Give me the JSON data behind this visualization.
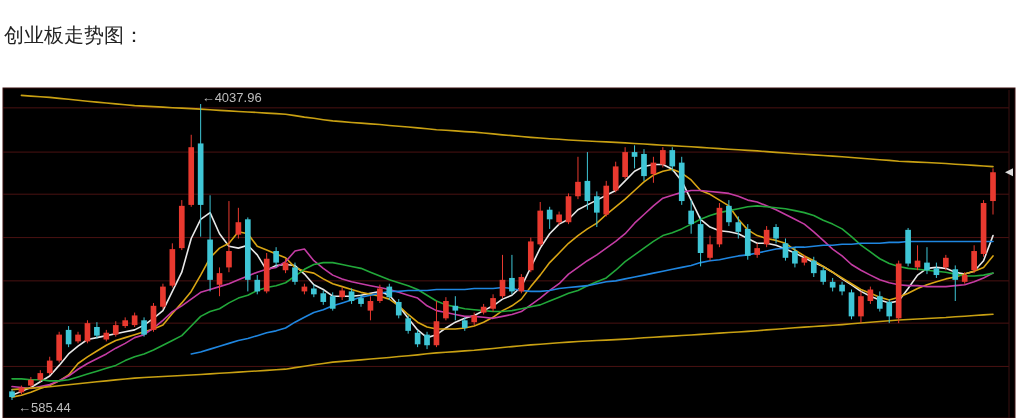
{
  "chart_data": {
    "type": "candlestick",
    "title": "创业板走势图：",
    "categories": [
      null,
      null,
      null,
      null,
      null,
      null,
      null,
      null,
      null,
      null,
      null,
      null,
      null,
      null,
      null,
      null,
      null,
      null,
      null,
      null,
      null,
      null,
      null,
      null,
      null,
      null,
      null,
      null,
      null,
      null,
      null,
      null,
      null,
      null,
      null,
      null,
      null,
      null,
      null,
      null,
      null,
      null,
      null,
      null,
      null,
      null,
      null,
      null,
      null,
      null,
      null,
      null,
      null,
      null,
      null,
      null,
      null,
      null,
      null,
      null,
      null,
      null,
      null,
      null,
      null,
      null,
      null,
      null,
      null,
      null,
      null,
      null,
      null,
      null,
      null,
      null,
      null,
      null,
      null,
      null,
      null,
      null,
      null,
      null,
      null,
      null,
      null,
      null,
      null,
      null,
      null,
      null,
      null,
      null,
      null,
      null,
      null,
      null,
      null,
      null,
      null,
      null,
      null,
      null,
      null
    ],
    "ohlc": [
      [
        686,
        709,
        585.44,
        619
      ],
      [
        675,
        754,
        653,
        731
      ],
      [
        754,
        854,
        731,
        821
      ],
      [
        821,
        933,
        798,
        899
      ],
      [
        899,
        1090,
        877,
        1045
      ],
      [
        1045,
        1381,
        1022,
        1348
      ],
      [
        1403,
        1448,
        1202,
        1235
      ],
      [
        1269,
        1381,
        1247,
        1348
      ],
      [
        1269,
        1515,
        1247,
        1482
      ],
      [
        1437,
        1493,
        1303,
        1336
      ],
      [
        1291,
        1403,
        1269,
        1370
      ],
      [
        1348,
        1504,
        1325,
        1459
      ],
      [
        1448,
        1549,
        1426,
        1515
      ],
      [
        1459,
        1605,
        1437,
        1572
      ],
      [
        1515,
        1549,
        1325,
        1348
      ],
      [
        1403,
        1717,
        1381,
        1684
      ],
      [
        1673,
        1942,
        1650,
        1908
      ],
      [
        1919,
        2413,
        1897,
        2345
      ],
      [
        2357,
        2917,
        2334,
        2850
      ],
      [
        2861,
        3679,
        2839,
        3534
      ],
      [
        3578,
        4037.96,
        2491,
        2861
      ],
      [
        2457,
        2973,
        1852,
        1987
      ],
      [
        1930,
        2132,
        1796,
        2065
      ],
      [
        2132,
        2906,
        2076,
        2323
      ],
      [
        2514,
        2827,
        2469,
        2659
      ],
      [
        2693,
        2715,
        1852,
        1987
      ],
      [
        1987,
        2043,
        1818,
        1852
      ],
      [
        1852,
        2300,
        1830,
        2233
      ],
      [
        2323,
        2368,
        2132,
        2188
      ],
      [
        2099,
        2233,
        2065,
        2188
      ],
      [
        2132,
        2188,
        1930,
        1964
      ],
      [
        1852,
        1942,
        1818,
        1908
      ],
      [
        1886,
        1930,
        1785,
        1818
      ],
      [
        1830,
        1863,
        1695,
        1729
      ],
      [
        1796,
        1841,
        1628,
        1650
      ],
      [
        1785,
        1897,
        1751,
        1863
      ],
      [
        1852,
        1886,
        1706,
        1740
      ],
      [
        1774,
        1818,
        1673,
        1706
      ],
      [
        1628,
        1796,
        1515,
        1740
      ],
      [
        1740,
        1930,
        1717,
        1886
      ],
      [
        1908,
        1942,
        1751,
        1785
      ],
      [
        1729,
        1762,
        1538,
        1572
      ],
      [
        1538,
        1572,
        1359,
        1392
      ],
      [
        1370,
        1403,
        1202,
        1235
      ],
      [
        1348,
        1381,
        1179,
        1224
      ],
      [
        1224,
        1740,
        1202,
        1504
      ],
      [
        1538,
        1785,
        1515,
        1740
      ],
      [
        1684,
        1796,
        1515,
        1628
      ],
      [
        1515,
        1549,
        1392,
        1426
      ],
      [
        1493,
        1605,
        1459,
        1572
      ],
      [
        1605,
        1706,
        1583,
        1673
      ],
      [
        1650,
        1818,
        1617,
        1774
      ],
      [
        1796,
        2278,
        1774,
        1987
      ],
      [
        2009,
        2278,
        1818,
        1852
      ],
      [
        1852,
        2054,
        1830,
        2020
      ],
      [
        2099,
        2480,
        2076,
        2435
      ],
      [
        2401,
        2895,
        2379,
        2794
      ],
      [
        2805,
        2839,
        2581,
        2693
      ],
      [
        2659,
        2783,
        2626,
        2749
      ],
      [
        2659,
        2995,
        2637,
        2962
      ],
      [
        2962,
        3422,
        2928,
        3130
      ],
      [
        3141,
        3477,
        2805,
        2906
      ],
      [
        2962,
        3018,
        2603,
        2771
      ],
      [
        2749,
        3141,
        2726,
        3085
      ],
      [
        3029,
        3365,
        3007,
        3310
      ],
      [
        3186,
        3534,
        3164,
        3477
      ],
      [
        3477,
        3556,
        3287,
        3422
      ],
      [
        3455,
        3511,
        3141,
        3197
      ],
      [
        3220,
        3422,
        3119,
        3354
      ],
      [
        3332,
        3534,
        3298,
        3500
      ],
      [
        3500,
        3534,
        3253,
        3310
      ],
      [
        3354,
        3422,
        2861,
        2906
      ],
      [
        2794,
        2917,
        2525,
        2637
      ],
      [
        2637,
        2726,
        2144,
        2300
      ],
      [
        2244,
        2502,
        2211,
        2401
      ],
      [
        2401,
        2883,
        2368,
        2827
      ],
      [
        2850,
        2917,
        2614,
        2659
      ],
      [
        2659,
        2726,
        2469,
        2547
      ],
      [
        2581,
        2637,
        2222,
        2267
      ],
      [
        2278,
        2413,
        2244,
        2357
      ],
      [
        2401,
        2614,
        2368,
        2570
      ],
      [
        2603,
        2637,
        2413,
        2469
      ],
      [
        2413,
        2469,
        2211,
        2244
      ],
      [
        2323,
        2368,
        2132,
        2177
      ],
      [
        2188,
        2278,
        2155,
        2244
      ],
      [
        2211,
        2256,
        2020,
        2065
      ],
      [
        2099,
        2132,
        1930,
        1964
      ],
      [
        1964,
        2009,
        1852,
        1897
      ],
      [
        1930,
        1964,
        1807,
        1852
      ],
      [
        1841,
        1874,
        1527,
        1561
      ],
      [
        1561,
        1852,
        1482,
        1796
      ],
      [
        1740,
        1908,
        1706,
        1874
      ],
      [
        1796,
        1852,
        1617,
        1650
      ],
      [
        1729,
        1762,
        1482,
        1561
      ],
      [
        1538,
        2211,
        1482,
        2177
      ],
      [
        2570,
        2592,
        2144,
        2177
      ],
      [
        2132,
        2390,
        2099,
        2211
      ],
      [
        2188,
        2368,
        2054,
        2099
      ],
      [
        2121,
        2188,
        2009,
        2043
      ],
      [
        2132,
        2278,
        2099,
        2244
      ],
      [
        2110,
        2155,
        1740,
        1987
      ],
      [
        1964,
        2076,
        1942,
        2043
      ],
      [
        2099,
        2390,
        2065,
        2323
      ],
      [
        2289,
        2917,
        2256,
        2883
      ],
      [
        2906,
        3287,
        2749,
        3242
      ]
    ],
    "colors": [
      "#3fc6d6",
      "#e8392f",
      "#e8392f",
      "#e8392f",
      "#e8392f",
      "#e8392f",
      "#3fc6d6",
      "#e8392f",
      "#e8392f",
      "#3fc6d6",
      "#e8392f",
      "#e8392f",
      "#e8392f",
      "#e8392f",
      "#3fc6d6",
      "#e8392f",
      "#e8392f",
      "#e8392f",
      "#e8392f",
      "#e8392f",
      "#3fc6d6",
      "#3fc6d6",
      "#e8392f",
      "#e8392f",
      "#e8392f",
      "#3fc6d6",
      "#3fc6d6",
      "#e8392f",
      "#3fc6d6",
      "#e8392f",
      "#3fc6d6",
      "#e8392f",
      "#3fc6d6",
      "#3fc6d6",
      "#3fc6d6",
      "#e8392f",
      "#3fc6d6",
      "#3fc6d6",
      "#e8392f",
      "#e8392f",
      "#3fc6d6",
      "#3fc6d6",
      "#3fc6d6",
      "#3fc6d6",
      "#3fc6d6",
      "#e8392f",
      "#e8392f",
      "#3fc6d6",
      "#3fc6d6",
      "#e8392f",
      "#e8392f",
      "#e8392f",
      "#e8392f",
      "#3fc6d6",
      "#e8392f",
      "#e8392f",
      "#e8392f",
      "#3fc6d6",
      "#e8392f",
      "#e8392f",
      "#e8392f",
      "#3fc6d6",
      "#3fc6d6",
      "#e8392f",
      "#e8392f",
      "#e8392f",
      "#3fc6d6",
      "#3fc6d6",
      "#e8392f",
      "#e8392f",
      "#3fc6d6",
      "#3fc6d6",
      "#3fc6d6",
      "#3fc6d6",
      "#e8392f",
      "#e8392f",
      "#3fc6d6",
      "#3fc6d6",
      "#3fc6d6",
      "#e8392f",
      "#e8392f",
      "#3fc6d6",
      "#3fc6d6",
      "#3fc6d6",
      "#e8392f",
      "#3fc6d6",
      "#3fc6d6",
      "#3fc6d6",
      "#3fc6d6",
      "#3fc6d6",
      "#e8392f",
      "#e8392f",
      "#3fc6d6",
      "#3fc6d6",
      "#e8392f",
      "#3fc6d6",
      "#e8392f",
      "#3fc6d6",
      "#3fc6d6",
      "#e8392f",
      "#3fc6d6",
      "#e8392f",
      "#e8392f",
      "#e8392f",
      "#e8392f"
    ],
    "series": [
      {
        "type": "line",
        "color": "#e8e8e8",
        "values": [
          641,
          686,
          731,
          798,
          865,
          989,
          1123,
          1213,
          1291,
          1313,
          1336,
          1358,
          1381,
          1403,
          1459,
          1538,
          1628,
          1852,
          2076,
          2469,
          2693,
          2771,
          2525,
          2379,
          2357,
          2391,
          2278,
          2098,
          2154,
          2166,
          2154,
          2054,
          1930,
          1874,
          1796,
          1796,
          1796,
          1807,
          1830,
          1852,
          1807,
          1684,
          1538,
          1403,
          1313,
          1347,
          1425,
          1493,
          1538,
          1572,
          1628,
          1684,
          1762,
          1807,
          1908,
          2132,
          2357,
          2525,
          2637,
          2693,
          2805,
          2861,
          2917,
          2973,
          3029,
          3141,
          3254,
          3310,
          3332,
          3332,
          3276,
          3141,
          2917,
          2693,
          2603,
          2559,
          2547,
          2525,
          2469,
          2413,
          2413,
          2391,
          2346,
          2300,
          2244,
          2188,
          2143,
          2076,
          1998,
          1930,
          1852,
          1796,
          1751,
          1718,
          1740,
          1886,
          2042,
          2121,
          2132,
          2121,
          2076,
          2054,
          2087,
          2210,
          2503
        ]
      },
      {
        "type": "line",
        "color": "#d9a514",
        "values": [
          619,
          641,
          675,
          720,
          754,
          809,
          877,
          1011,
          1089,
          1157,
          1224,
          1280,
          1313,
          1347,
          1381,
          1414,
          1459,
          1594,
          1718,
          1852,
          2042,
          2244,
          2357,
          2413,
          2547,
          2525,
          2379,
          2335,
          2289,
          2244,
          2132,
          2087,
          2065,
          1998,
          1942,
          1908,
          1874,
          1841,
          1818,
          1796,
          1762,
          1684,
          1583,
          1493,
          1437,
          1414,
          1414,
          1414,
          1425,
          1448,
          1493,
          1550,
          1628,
          1684,
          1762,
          1908,
          2042,
          2188,
          2300,
          2413,
          2503,
          2581,
          2648,
          2749,
          2839,
          2928,
          3029,
          3130,
          3209,
          3254,
          3276,
          3232,
          3152,
          3029,
          2984,
          2917,
          2850,
          2693,
          2570,
          2503,
          2469,
          2447,
          2413,
          2335,
          2266,
          2210,
          2143,
          2076,
          2009,
          1942,
          1874,
          1830,
          1785,
          1751,
          1785,
          1830,
          1886,
          1930,
          1964,
          1998,
          2020,
          2054,
          2087,
          2132,
          2266
        ]
      },
      {
        "type": "line",
        "color": "#c43ca4",
        "values": [
          742,
          731,
          720,
          742,
          765,
          809,
          865,
          944,
          1011,
          1067,
          1123,
          1190,
          1246,
          1313,
          1347,
          1425,
          1515,
          1617,
          1684,
          1762,
          1841,
          1874,
          1908,
          1942,
          1987,
          2031,
          2076,
          2110,
          2132,
          2199,
          2323,
          2346,
          2210,
          2121,
          2042,
          1998,
          1964,
          1942,
          1919,
          1897,
          1874,
          1841,
          1807,
          1774,
          1684,
          1628,
          1606,
          1583,
          1561,
          1561,
          1550,
          1538,
          1561,
          1583,
          1617,
          1695,
          1774,
          1863,
          1942,
          2054,
          2132,
          2210,
          2278,
          2357,
          2435,
          2525,
          2648,
          2749,
          2850,
          2939,
          2973,
          3007,
          3029,
          3029,
          3018,
          3007,
          2995,
          2962,
          2917,
          2895,
          2850,
          2805,
          2749,
          2693,
          2637,
          2547,
          2447,
          2346,
          2266,
          2166,
          2099,
          2042,
          1987,
          1953,
          1930,
          1919,
          1919,
          1908,
          1908,
          1908,
          1919,
          1930,
          1964,
          2009,
          2065
        ]
      },
      {
        "type": "line",
        "color": "#22a83a",
        "values": [
          832,
          832,
          821,
          821,
          809,
          809,
          821,
          854,
          888,
          921,
          955,
          989,
          1045,
          1089,
          1123,
          1168,
          1224,
          1280,
          1336,
          1448,
          1561,
          1617,
          1650,
          1718,
          1774,
          1807,
          1863,
          1897,
          1919,
          1953,
          2031,
          2110,
          2166,
          2188,
          2188,
          2166,
          2143,
          2121,
          2076,
          2031,
          1987,
          1953,
          1919,
          1874,
          1807,
          1740,
          1695,
          1673,
          1650,
          1639,
          1628,
          1617,
          1617,
          1628,
          1650,
          1673,
          1695,
          1740,
          1785,
          1830,
          1863,
          1919,
          1964,
          2009,
          2099,
          2199,
          2278,
          2357,
          2435,
          2503,
          2536,
          2581,
          2637,
          2693,
          2738,
          2771,
          2794,
          2816,
          2839,
          2850,
          2839,
          2827,
          2816,
          2794,
          2771,
          2738,
          2682,
          2637,
          2581,
          2491,
          2391,
          2312,
          2233,
          2177,
          2143,
          2121,
          2110,
          2099,
          2087,
          2076,
          2054,
          2031,
          2031,
          2042,
          2065
        ]
      },
      {
        "type": "line",
        "color": "#1f86e0",
        "values": [
          null,
          null,
          null,
          null,
          null,
          null,
          null,
          null,
          null,
          null,
          null,
          null,
          null,
          null,
          null,
          null,
          null,
          null,
          null,
          1123,
          1145,
          1179,
          1213,
          1246,
          1280,
          1302,
          1336,
          1370,
          1392,
          1425,
          1493,
          1550,
          1606,
          1639,
          1684,
          1718,
          1751,
          1785,
          1807,
          1830,
          1852,
          1852,
          1863,
          1863,
          1863,
          1874,
          1874,
          1874,
          1874,
          1886,
          1886,
          1886,
          1897,
          1886,
          1863,
          1852,
          1852,
          1863,
          1886,
          1897,
          1908,
          1919,
          1942,
          1964,
          1975,
          1998,
          2020,
          2042,
          2065,
          2087,
          2110,
          2132,
          2155,
          2188,
          2210,
          2222,
          2244,
          2266,
          2278,
          2300,
          2323,
          2346,
          2357,
          2368,
          2368,
          2379,
          2391,
          2391,
          2402,
          2402,
          2413,
          2413,
          2413,
          2424,
          2424,
          2435,
          2435,
          2435,
          2435,
          2435,
          2435,
          2435,
          2435,
          2435,
          2435
        ]
      },
      {
        "type": "line",
        "color": "#c8a012",
        "values": [
          null,
          4139,
          4130,
          4123,
          4115,
          4104,
          4093,
          4082,
          4070,
          4060,
          4050,
          4039,
          4029,
          4019,
          4013,
          4007,
          4001,
          3995,
          3990,
          3984,
          3978,
          3971,
          3964,
          3958,
          3951,
          3945,
          3939,
          3932,
          3926,
          3919,
          3902,
          3885,
          3871,
          3855,
          3841,
          3832,
          3823,
          3815,
          3806,
          3798,
          3788,
          3779,
          3769,
          3760,
          3749,
          3738,
          3731,
          3724,
          3716,
          3710,
          3699,
          3689,
          3678,
          3669,
          3658,
          3649,
          3641,
          3633,
          3626,
          3618,
          3612,
          3606,
          3601,
          3596,
          3590,
          3584,
          3577,
          3571,
          3564,
          3557,
          3552,
          3546,
          3539,
          3532,
          3525,
          3518,
          3511,
          3504,
          3497,
          3491,
          3482,
          3474,
          3466,
          3458,
          3451,
          3444,
          3437,
          3430,
          3423,
          3414,
          3405,
          3397,
          3388,
          3380,
          3371,
          3366,
          3360,
          3355,
          3349,
          3344,
          3336,
          3329,
          3322,
          3315,
          3307
        ]
      },
      {
        "type": "line",
        "color": "#c8a012",
        "values": [
          706,
          715,
          724,
          732,
          740,
          752,
          764,
          775,
          787,
          798,
          809,
          820,
          830,
          841,
          847,
          853,
          859,
          865,
          871,
          877,
          883,
          890,
          897,
          903,
          911,
          917,
          924,
          931,
          938,
          945,
          963,
          980,
          996,
          1012,
          1027,
          1036,
          1045,
          1054,
          1063,
          1072,
          1082,
          1092,
          1102,
          1112,
          1124,
          1135,
          1143,
          1150,
          1158,
          1165,
          1176,
          1187,
          1198,
          1208,
          1218,
          1228,
          1236,
          1244,
          1253,
          1261,
          1267,
          1273,
          1279,
          1284,
          1290,
          1296,
          1303,
          1311,
          1318,
          1325,
          1330,
          1337,
          1344,
          1351,
          1358,
          1365,
          1372,
          1379,
          1386,
          1394,
          1403,
          1411,
          1420,
          1428,
          1435,
          1442,
          1450,
          1457,
          1465,
          1474,
          1483,
          1492,
          1501,
          1510,
          1519,
          1524,
          1530,
          1536,
          1542,
          1547,
          1556,
          1563,
          1571,
          1578,
          1586
        ]
      }
    ],
    "annotations": [
      "←4037.96",
      "←585.44"
    ],
    "yticks": [
      {
        "value": 977,
        "label": null
      },
      {
        "value": 1482,
        "label": null
      },
      {
        "value": 1975,
        "label": null
      },
      {
        "value": 2480,
        "label": null
      },
      {
        "value": 2986,
        "label": null
      },
      {
        "value": 3477,
        "label": null
      },
      {
        "value": 3993,
        "label": null
      }
    ],
    "grid": "y"
  }
}
